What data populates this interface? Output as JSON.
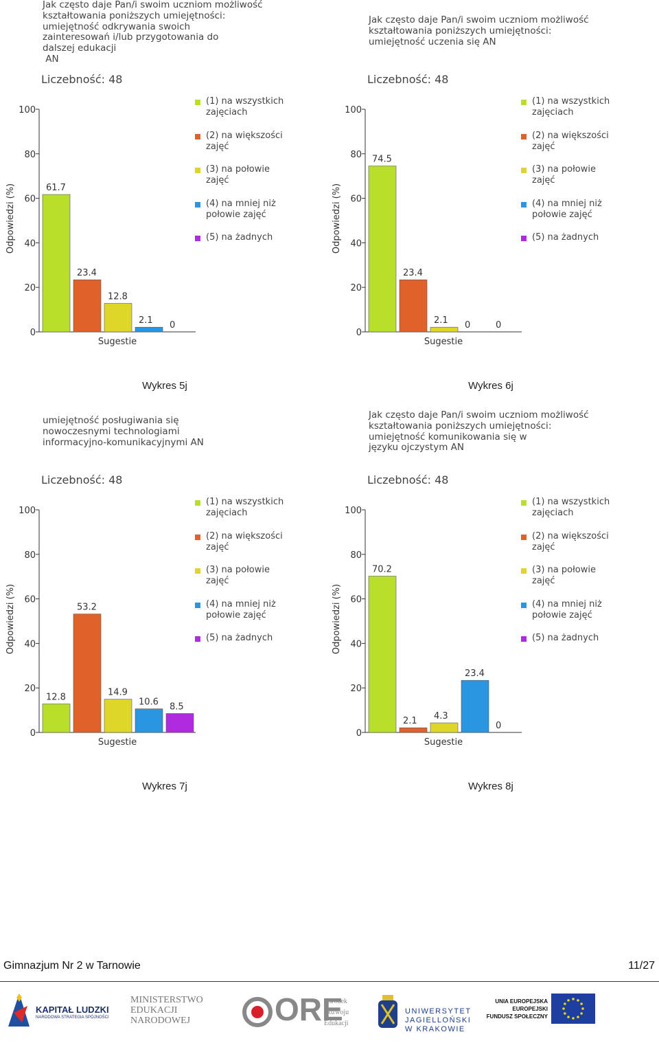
{
  "chart_data": [
    {
      "type": "bar",
      "title": "Jak często daje Pan/i swoim uczniom możliwość\nkształtowania poniższych umiejętności:\numiejętność odkrywania swoich\nzainteresowań i/lub przygotowania do\ndalszej edukacji\n AN",
      "subtitle": "Liczebność: 48",
      "ylabel": "Odpowiedzi (%)",
      "xlabel": "Sugestie",
      "categories": [
        "(1) na wszystkich\nzajęciach",
        "(2) na większości\nzajęć",
        "(3) na połowie\nzajęć",
        "(4) na mniej niż\npołowie zajęć",
        "(5) na żadnych"
      ],
      "colors": [
        "#b8e02a",
        "#e0622a",
        "#ded628",
        "#2a95e0",
        "#b02ae0"
      ],
      "values": [
        61.7,
        23.4,
        12.8,
        2.1,
        0
      ],
      "ylim": [
        0,
        100
      ],
      "yticks": [
        0,
        20,
        40,
        60,
        80,
        100
      ],
      "caption": "Wykres 5j"
    },
    {
      "type": "bar",
      "title": "Jak często daje Pan/i swoim uczniom możliwość\nkształtowania poniższych umiejętności:\numiejętność uczenia się AN",
      "subtitle": "Liczebność: 48",
      "ylabel": "Odpowiedzi (%)",
      "xlabel": "Sugestie",
      "categories": [
        "(1) na wszystkich\nzajęciach",
        "(2) na większości\nzajęć",
        "(3) na połowie\nzajęć",
        "(4) na mniej niż\npołowie zajęć",
        "(5) na żadnych"
      ],
      "colors": [
        "#b8e02a",
        "#e0622a",
        "#ded628",
        "#2a95e0",
        "#b02ae0"
      ],
      "values": [
        74.5,
        23.4,
        2.1,
        0,
        0
      ],
      "ylim": [
        0,
        100
      ],
      "yticks": [
        0,
        20,
        40,
        60,
        80,
        100
      ],
      "caption": "Wykres 6j"
    },
    {
      "type": "bar",
      "title": "umiejętność posługiwania się\nnowoczesnymi technologiami\ninformacyjno-komunikacyjnymi AN",
      "subtitle": "Liczebność: 48",
      "ylabel": "Odpowiedzi (%)",
      "xlabel": "Sugestie",
      "categories": [
        "(1) na wszystkich\nzajęciach",
        "(2) na większości\nzajęć",
        "(3) na połowie\nzajęć",
        "(4) na mniej niż\npołowie zajęć",
        "(5) na żadnych"
      ],
      "colors": [
        "#b8e02a",
        "#e0622a",
        "#ded628",
        "#2a95e0",
        "#b02ae0"
      ],
      "values": [
        12.8,
        53.2,
        14.9,
        10.6,
        8.5
      ],
      "ylim": [
        0,
        100
      ],
      "yticks": [
        0,
        20,
        40,
        60,
        80,
        100
      ],
      "caption": "Wykres 7j"
    },
    {
      "type": "bar",
      "title": "Jak często daje Pan/i swoim uczniom możliwość\nkształtowania poniższych umiejętności:\numiejętność komunikowania się w\njęzyku ojczystym AN",
      "subtitle": "Liczebność: 48",
      "ylabel": "Odpowiedzi (%)",
      "xlabel": "Sugestie",
      "categories": [
        "(1) na wszystkich\nzajęciach",
        "(2) na większości\nzajęć",
        "(3) na połowie\nzajęć",
        "(4) na mniej niż\npołowie zajęć",
        "(5) na żadnych"
      ],
      "colors": [
        "#b8e02a",
        "#e0622a",
        "#ded628",
        "#2a95e0",
        "#b02ae0"
      ],
      "values": [
        70.2,
        2.1,
        4.3,
        23.4,
        0
      ],
      "ylim": [
        0,
        100
      ],
      "yticks": [
        0,
        20,
        40,
        60,
        80,
        100
      ],
      "caption": "Wykres 8j"
    }
  ],
  "footer": {
    "school": "Gimnazjum Nr 2 w Tarnowie",
    "page": "11/27"
  },
  "logos": {
    "kl_title": "KAPITAŁ LUDZKI",
    "kl_sub": "NARODOWA STRATEGIA SPÓJNOŚCI",
    "men": "MINISTERSTWO\nEDUKACJI\nNARODOWEJ",
    "ore": "ORE",
    "ore_name": "Ośrodek\nRozwoju\nEdukacji",
    "uj": "UNIWERSYTET\nJAGIELLOŃSKI\nW KRAKOWIE",
    "ue": "UNIA EUROPEJSKA\nEUROPEJSKI\nFUNDUSZ SPOŁECZNY"
  }
}
